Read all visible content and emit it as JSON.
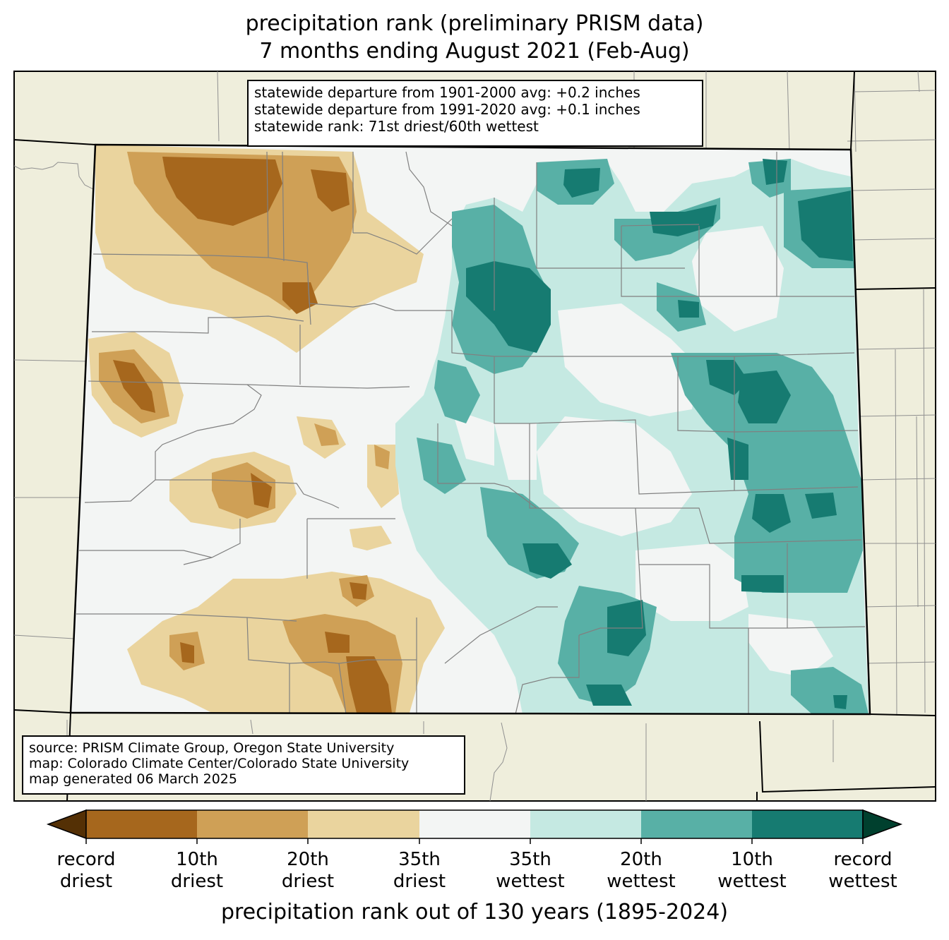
{
  "title_line1": "precipitation rank (preliminary PRISM data)",
  "title_line2": "7 months ending August 2021 (Feb-Aug)",
  "stats": {
    "line1": "statewide departure from 1901-2000 avg: +0.2 inches",
    "line2": "statewide departure from 1991-2020 avg: +0.1 inches",
    "line3": "statewide rank: 71st driest/60th wettest"
  },
  "source": {
    "line1": "source: PRISM Climate Group, Oregon State University",
    "line2": "map: Colorado Climate Center/Colorado State University",
    "line3": "map generated 06 March 2025"
  },
  "colorbar": {
    "title": "precipitation rank out of 130 years (1895-2024)",
    "labels": [
      {
        "line1": "record",
        "line2": "driest"
      },
      {
        "line1": "10th",
        "line2": "driest"
      },
      {
        "line1": "20th",
        "line2": "driest"
      },
      {
        "line1": "35th",
        "line2": "driest"
      },
      {
        "line1": "35th",
        "line2": "wettest"
      },
      {
        "line1": "20th",
        "line2": "wettest"
      },
      {
        "line1": "10th",
        "line2": "wettest"
      },
      {
        "line1": "record",
        "line2": "wettest"
      }
    ],
    "colors": {
      "record_driest_extend": "#543005",
      "driest_10": "#a6671d",
      "driest_20": "#cfa056",
      "driest_35": "#ead49e",
      "normal": "#f3f5f4",
      "wettest_35": "#c5e9e2",
      "wettest_20": "#58b0a6",
      "wettest_10": "#167b71",
      "record_wettest_extend": "#00402e"
    }
  },
  "map_colors": {
    "land_outside": "#efeedc",
    "state_border": "#000000",
    "county_lines": "#808080"
  }
}
